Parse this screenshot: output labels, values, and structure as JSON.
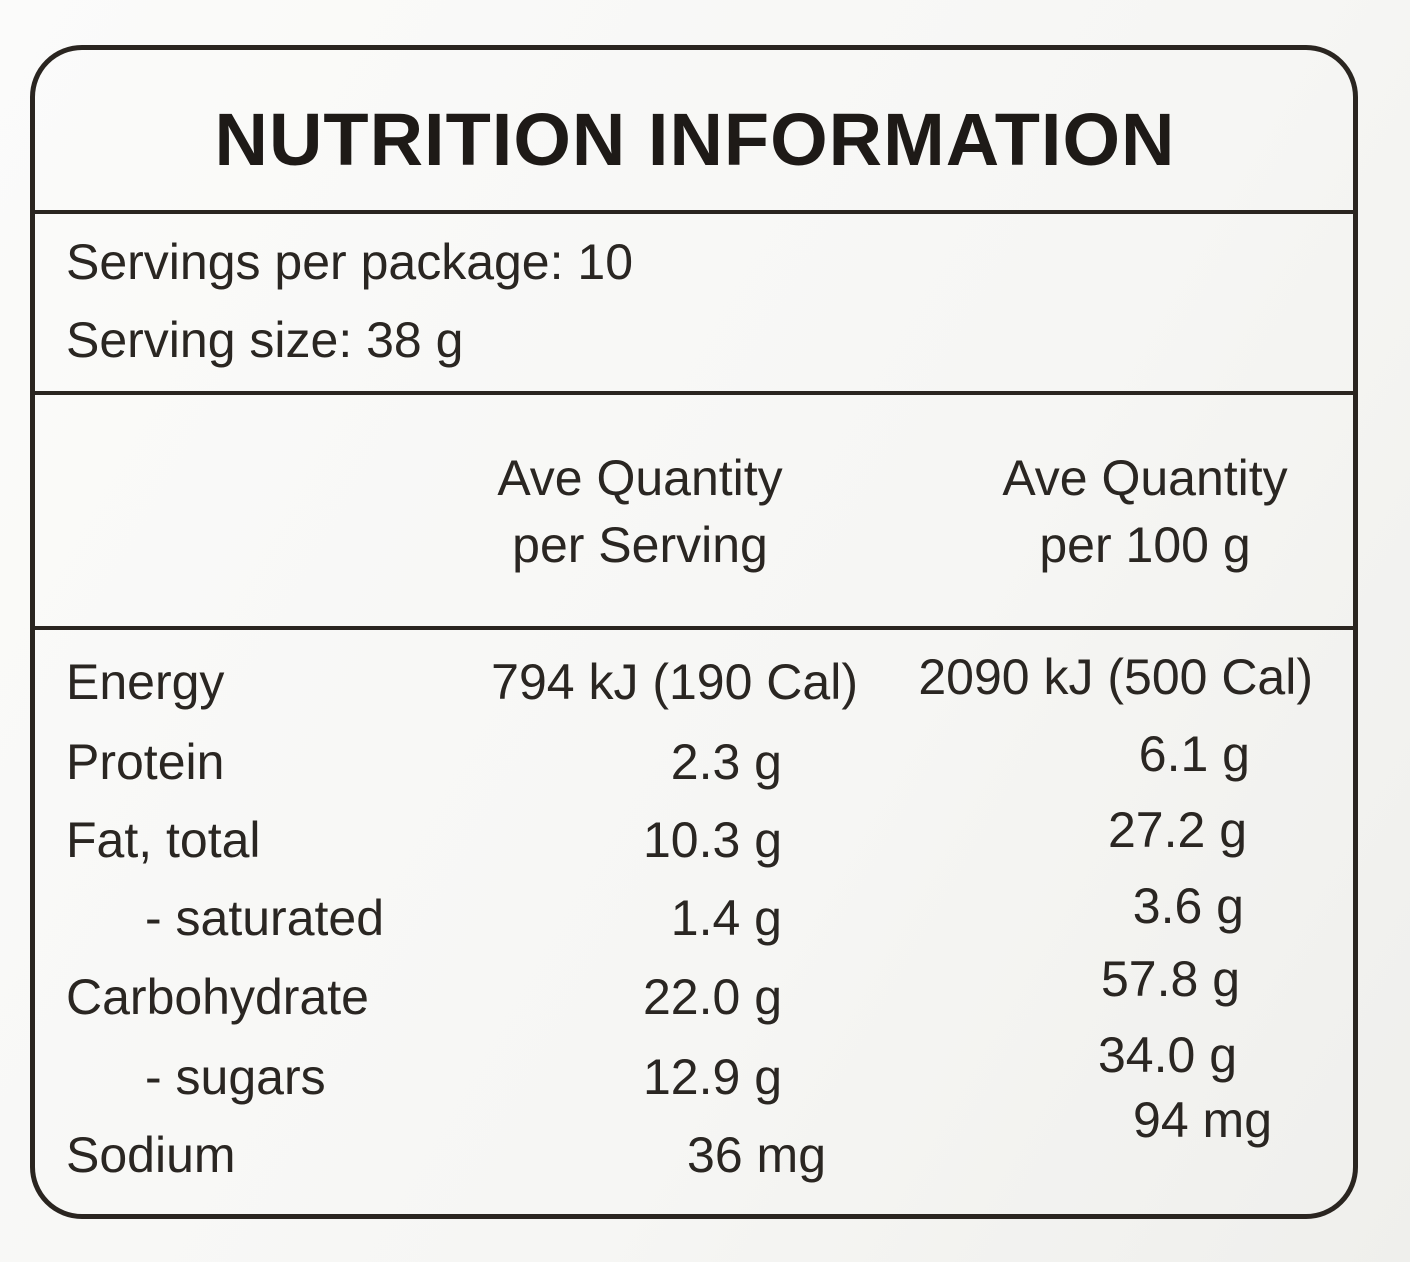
{
  "title": "NUTRITION INFORMATION",
  "servings": {
    "per_package": "Servings per package: 10",
    "size": "Serving size: 38 g"
  },
  "table": {
    "header": [
      [
        "Ave Quantity",
        "per Serving"
      ],
      [
        "Ave Quantity",
        "per 100 g"
      ]
    ],
    "rows": [
      [
        "Energy",
        "794 kJ (190 Cal)",
        "2090 kJ (500 Cal)"
      ],
      [
        "Protein",
        "2.3 g",
        "6.1 g"
      ],
      [
        "Fat, total",
        "10.3 g",
        "27.2 g"
      ],
      [
        "- saturated",
        "1.4 g",
        "3.6 g"
      ],
      [
        "Carbohydrate",
        "22.0 g",
        "57.8 g"
      ],
      [
        "- sugars",
        "12.9 g",
        "34.0 g"
      ],
      [
        "Sodium",
        "36 mg",
        "94 mg"
      ]
    ]
  }
}
